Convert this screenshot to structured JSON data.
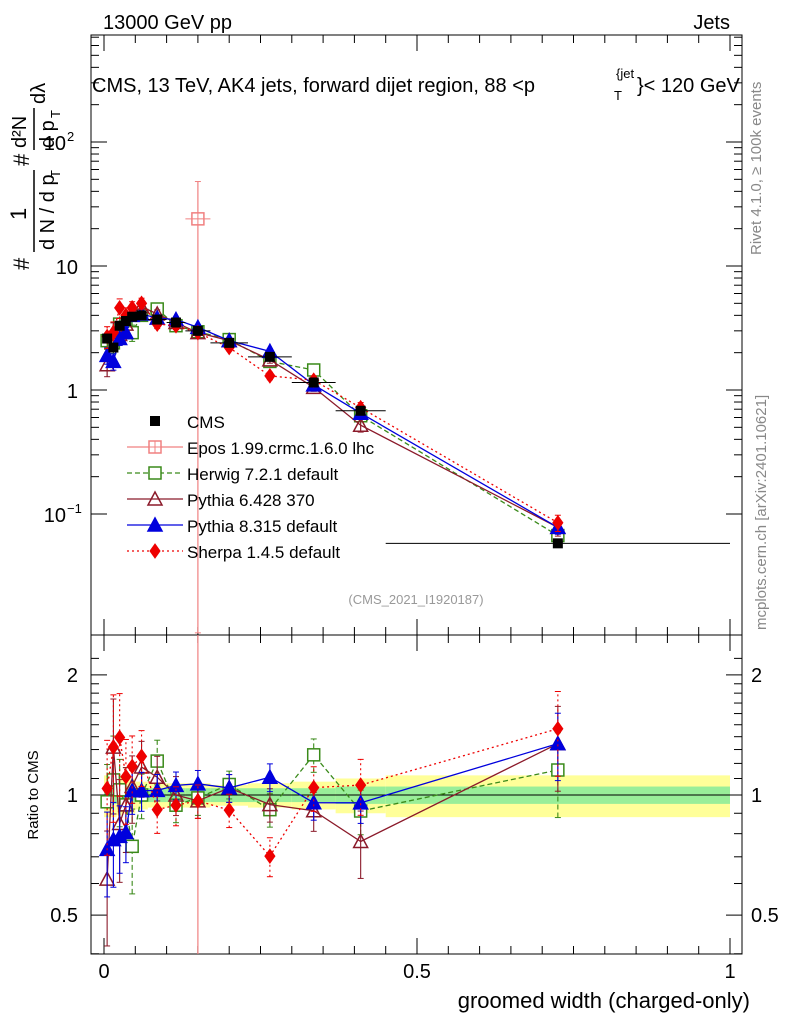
{
  "header": {
    "left": "13000 GeV pp",
    "right": "Jets"
  },
  "side_labels": {
    "rivet": "Rivet 4.1.0, ≥ 100k events",
    "mcplots": "mcplots.cern.ch [arXiv:2401.10621]"
  },
  "chart_data": {
    "type": "line",
    "title": "CMS, 13 TeV, AK4 jets, forward dijet region, 88 <p_T^{jet}< 120 GeV",
    "title_main": "CMS, 13 TeV, AK4 jets, forward dijet region, 88 <p",
    "title_sup": "{jet",
    "title_sub": "T",
    "title_tail": "}< 120 GeV",
    "ylabel": "1/dN dN/dp_T d^2N/dp_T dλ",
    "ylabel_parts": {
      "f1_num": "1",
      "f1_den": "d N / d p",
      "f1_den_sub": "T",
      "f2_num": "d²N",
      "f2_den": "d p",
      "f2_den_sub": "T",
      "f2_tail": "dλ",
      "hash": "#"
    },
    "xlabel": "groomed width (charged-only)",
    "ratio_ylabel": "Ratio to CMS",
    "watermark": "(CMS_2021_I1920187)",
    "x_range": [
      -0.02,
      1.0
    ],
    "y_range_log": [
      0.01,
      800
    ],
    "ratio_range": [
      0.38,
      2.3
    ],
    "x_ticks": [
      {
        "value": 0,
        "label": "0"
      },
      {
        "value": 0.5,
        "label": "0.5"
      },
      {
        "value": 1,
        "label": "1"
      }
    ],
    "y_ticks": [
      {
        "value": 0.1,
        "label": "10",
        "sup": "−1"
      },
      {
        "value": 1,
        "label": "1",
        "sup": ""
      },
      {
        "value": 10,
        "label": "10",
        "sup": ""
      },
      {
        "value": 100,
        "label": "10",
        "sup": "2"
      }
    ],
    "ratio_ticks": [
      {
        "value": 0.5,
        "label": "0.5"
      },
      {
        "value": 1,
        "label": "1"
      },
      {
        "value": 2,
        "label": "2"
      }
    ],
    "bins": [
      {
        "lo": 0.0,
        "hi": 0.01,
        "x": 0.005
      },
      {
        "lo": 0.01,
        "hi": 0.02,
        "x": 0.015
      },
      {
        "lo": 0.02,
        "hi": 0.03,
        "x": 0.025
      },
      {
        "lo": 0.03,
        "hi": 0.04,
        "x": 0.035
      },
      {
        "lo": 0.04,
        "hi": 0.05,
        "x": 0.045
      },
      {
        "lo": 0.05,
        "hi": 0.07,
        "x": 0.06
      },
      {
        "lo": 0.07,
        "hi": 0.1,
        "x": 0.085
      },
      {
        "lo": 0.1,
        "hi": 0.13,
        "x": 0.115
      },
      {
        "lo": 0.13,
        "hi": 0.17,
        "x": 0.15
      },
      {
        "lo": 0.17,
        "hi": 0.23,
        "x": 0.2
      },
      {
        "lo": 0.23,
        "hi": 0.3,
        "x": 0.265
      },
      {
        "lo": 0.3,
        "hi": 0.37,
        "x": 0.335
      },
      {
        "lo": 0.37,
        "hi": 0.45,
        "x": 0.41
      },
      {
        "lo": 0.45,
        "hi": 1.0,
        "x": 0.725
      }
    ],
    "cms_values": [
      2.6,
      2.2,
      3.3,
      3.6,
      3.9,
      4.0,
      3.7,
      3.5,
      3.0,
      2.4,
      1.85,
      1.15,
      0.68,
      0.058
    ],
    "band_stat_half": [
      0.05,
      0.05,
      0.05,
      0.05,
      0.05,
      0.04,
      0.04,
      0.04,
      0.04,
      0.04,
      0.04,
      0.04,
      0.05,
      0.05
    ],
    "band_total_half": [
      0.12,
      0.12,
      0.11,
      0.1,
      0.1,
      0.08,
      0.07,
      0.07,
      0.07,
      0.06,
      0.07,
      0.08,
      0.1,
      0.12
    ],
    "series": [
      {
        "name": "Epos 1.99.crmc.1.6.0 lhc",
        "key": "epos",
        "color": "#f08080",
        "dash": "",
        "marker": "plus-square",
        "x": [
          0.15
        ],
        "xerr": [
          0.02
        ],
        "values": [
          24
        ],
        "err_lo": [
          24
        ],
        "err_hi": [
          24
        ]
      },
      {
        "name": "Herwig 7.2.1 default",
        "key": "herwig",
        "color": "#3a8a1a",
        "dash": "5,3",
        "marker": "open-square",
        "x": [
          0.005,
          0.015,
          0.025,
          0.035,
          0.045,
          0.06,
          0.085,
          0.115,
          0.15,
          0.2,
          0.265,
          0.335,
          0.41,
          0.725
        ],
        "values": [
          2.5,
          2.4,
          3.4,
          3.4,
          2.9,
          4.0,
          4.5,
          3.3,
          2.95,
          2.55,
          1.7,
          1.45,
          0.62,
          0.067
        ],
        "err_rel": [
          0.15,
          0.18,
          0.12,
          0.15,
          0.15,
          0.08,
          0.08,
          0.06,
          0.06,
          0.05,
          0.06,
          0.06,
          0.08,
          0.15
        ]
      },
      {
        "name": "Pythia 6.428 370",
        "key": "pythia6",
        "color": "#8b1a2a",
        "dash": "",
        "marker": "open-triangle",
        "x": [
          0.005,
          0.015,
          0.025,
          0.035,
          0.045,
          0.06,
          0.085,
          0.115,
          0.15,
          0.2,
          0.265,
          0.335,
          0.41,
          0.725
        ],
        "values": [
          1.6,
          2.9,
          2.8,
          3.4,
          4.1,
          4.7,
          4.1,
          3.5,
          2.9,
          2.5,
          1.75,
          1.05,
          0.52,
          0.078
        ],
        "err_rel": [
          0.2,
          0.2,
          0.18,
          0.15,
          0.12,
          0.1,
          0.08,
          0.07,
          0.06,
          0.05,
          0.06,
          0.07,
          0.12,
          0.15
        ]
      },
      {
        "name": "Pythia 8.315 default",
        "key": "pythia8",
        "color": "#0000dd",
        "dash": "",
        "marker": "filled-triangle",
        "x": [
          0.005,
          0.015,
          0.025,
          0.035,
          0.045,
          0.06,
          0.085,
          0.115,
          0.15,
          0.2,
          0.265,
          0.335,
          0.41,
          0.725
        ],
        "values": [
          1.9,
          1.7,
          2.6,
          2.9,
          4.0,
          4.1,
          3.8,
          3.7,
          3.2,
          2.5,
          2.05,
          1.1,
          0.65,
          0.078
        ],
        "err_rel": [
          0.15,
          0.15,
          0.12,
          0.1,
          0.08,
          0.07,
          0.06,
          0.05,
          0.05,
          0.05,
          0.05,
          0.06,
          0.07,
          0.12
        ]
      },
      {
        "name": "Sherpa 1.4.5 default",
        "key": "sherpa",
        "color": "#ee0000",
        "dash": "2,3",
        "marker": "filled-diamond",
        "x": [
          0.005,
          0.015,
          0.025,
          0.035,
          0.045,
          0.06,
          0.085,
          0.115,
          0.15,
          0.2,
          0.265,
          0.335,
          0.41,
          0.725
        ],
        "values": [
          2.7,
          2.9,
          4.6,
          4.0,
          4.6,
          5.0,
          3.4,
          3.3,
          2.9,
          2.2,
          1.3,
          1.2,
          0.72,
          0.085
        ],
        "err_rel": [
          0.2,
          0.22,
          0.18,
          0.15,
          0.12,
          0.1,
          0.08,
          0.07,
          0.06,
          0.06,
          0.07,
          0.08,
          0.1,
          0.15
        ]
      }
    ],
    "legend": {
      "placement": "middle-left",
      "entries": [
        "CMS",
        "Epos 1.99.crmc.1.6.0 lhc",
        "Herwig 7.2.1 default",
        "Pythia 6.428 370",
        "Pythia 8.315 default",
        "Sherpa 1.4.5 default"
      ]
    }
  }
}
